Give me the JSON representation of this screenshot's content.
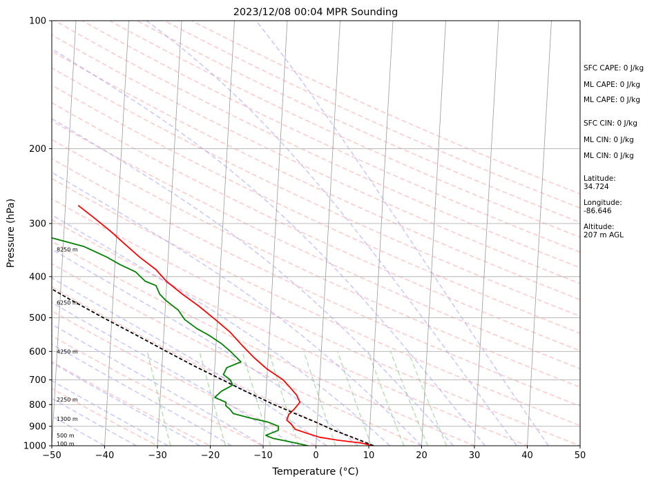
{
  "chart_data": {
    "type": "line",
    "title": "2023/12/08 00:04 MPR Sounding",
    "xlabel": "Temperature (°C)",
    "ylabel": "Pressure (hPa)",
    "xlim": [
      -50,
      50
    ],
    "ylim": [
      1000,
      100
    ],
    "y_scale": "log",
    "skew": "skew-T",
    "x_ticks": [
      "−50",
      "−40",
      "−30",
      "−20",
      "−10",
      "0",
      "10",
      "20",
      "30",
      "40",
      "50"
    ],
    "y_ticks": [
      "100",
      "200",
      "300",
      "400",
      "500",
      "600",
      "700",
      "800",
      "900",
      "1000"
    ],
    "grid": true,
    "colors": {
      "temperature": "#ff0000",
      "dewpoint": "#008000",
      "parcel": "#000000",
      "dry_adiabats": "#ff9999",
      "moist_adiabats": "#9999ff",
      "mixing_ratio": "#88cc88",
      "isotherms": "#999999"
    },
    "height_labels": [
      {
        "label": "100 m",
        "p": 988
      },
      {
        "label": "500 m",
        "p": 945
      },
      {
        "label": "1300 m",
        "p": 865
      },
      {
        "label": "2250 m",
        "p": 778
      },
      {
        "label": "4250 m",
        "p": 600
      },
      {
        "label": "6250 m",
        "p": 460
      },
      {
        "label": "8250 m",
        "p": 345
      }
    ],
    "series": [
      {
        "name": "temperature",
        "points": [
          {
            "p": 1000,
            "t": 10.9
          },
          {
            "p": 985,
            "t": 8.5
          },
          {
            "p": 970,
            "t": 4.0
          },
          {
            "p": 955,
            "t": 0.6
          },
          {
            "p": 935,
            "t": -1.8
          },
          {
            "p": 915,
            "t": -4.1
          },
          {
            "p": 890,
            "t": -4.9
          },
          {
            "p": 870,
            "t": -5.8
          },
          {
            "p": 845,
            "t": -5.5
          },
          {
            "p": 820,
            "t": -4.5
          },
          {
            "p": 790,
            "t": -3.5
          },
          {
            "p": 760,
            "t": -4.2
          },
          {
            "p": 730,
            "t": -5.5
          },
          {
            "p": 700,
            "t": -6.9
          },
          {
            "p": 660,
            "t": -10.1
          },
          {
            "p": 620,
            "t": -12.7
          },
          {
            "p": 580,
            "t": -15.1
          },
          {
            "p": 540,
            "t": -17.5
          },
          {
            "p": 505,
            "t": -20.4
          },
          {
            "p": 470,
            "t": -23.6
          },
          {
            "p": 440,
            "t": -26.9
          },
          {
            "p": 410,
            "t": -30.1
          },
          {
            "p": 385,
            "t": -32.2
          },
          {
            "p": 360,
            "t": -35.4
          },
          {
            "p": 335,
            "t": -38.4
          },
          {
            "p": 312,
            "t": -41.3
          },
          {
            "p": 290,
            "t": -44.6
          },
          {
            "p": 272,
            "t": -47.6
          }
        ]
      },
      {
        "name": "dewpoint",
        "points": [
          {
            "p": 1000,
            "t": -1.5
          },
          {
            "p": 985,
            "t": -3.9
          },
          {
            "p": 960,
            "t": -8.3
          },
          {
            "p": 945,
            "t": -9.6
          },
          {
            "p": 920,
            "t": -7.3
          },
          {
            "p": 900,
            "t": -7.3
          },
          {
            "p": 880,
            "t": -9.3
          },
          {
            "p": 860,
            "t": -12.8
          },
          {
            "p": 840,
            "t": -16.0
          },
          {
            "p": 820,
            "t": -16.7
          },
          {
            "p": 805,
            "t": -17.5
          },
          {
            "p": 790,
            "t": -17.5
          },
          {
            "p": 770,
            "t": -19.7
          },
          {
            "p": 745,
            "t": -18.5
          },
          {
            "p": 720,
            "t": -16.4
          },
          {
            "p": 700,
            "t": -16.9
          },
          {
            "p": 680,
            "t": -18.3
          },
          {
            "p": 655,
            "t": -17.7
          },
          {
            "p": 635,
            "t": -15.1
          },
          {
            "p": 600,
            "t": -17.2
          },
          {
            "p": 575,
            "t": -19.0
          },
          {
            "p": 550,
            "t": -21.4
          },
          {
            "p": 530,
            "t": -23.8
          },
          {
            "p": 505,
            "t": -26.2
          },
          {
            "p": 480,
            "t": -27.5
          },
          {
            "p": 455,
            "t": -30.0
          },
          {
            "p": 440,
            "t": -31.2
          },
          {
            "p": 420,
            "t": -32.0
          },
          {
            "p": 410,
            "t": -34.1
          },
          {
            "p": 390,
            "t": -36.0
          },
          {
            "p": 375,
            "t": -39.0
          },
          {
            "p": 360,
            "t": -41.6
          },
          {
            "p": 340,
            "t": -46.0
          },
          {
            "p": 325,
            "t": -52.0
          },
          {
            "p": 310,
            "t": -57.2
          },
          {
            "p": 300,
            "t": -65.5
          },
          {
            "p": 293,
            "t": -75.4
          }
        ]
      },
      {
        "name": "parcel",
        "points": [
          {
            "p": 1000,
            "t": 10.9
          },
          {
            "p": 960,
            "t": 7.3
          },
          {
            "p": 920,
            "t": 3.3
          },
          {
            "p": 880,
            "t": -0.3
          },
          {
            "p": 840,
            "t": -4.3
          },
          {
            "p": 815,
            "t": -6.8
          },
          {
            "p": 800,
            "t": -8.4
          },
          {
            "p": 770,
            "t": -11.3
          },
          {
            "p": 740,
            "t": -14.4
          },
          {
            "p": 700,
            "t": -18.4
          },
          {
            "p": 650,
            "t": -23.8
          },
          {
            "p": 600,
            "t": -29.3
          },
          {
            "p": 550,
            "t": -35.1
          },
          {
            "p": 500,
            "t": -41.6
          },
          {
            "p": 450,
            "t": -48.5
          },
          {
            "p": 400,
            "t": -55.9
          },
          {
            "p": 350,
            "t": -64.1
          },
          {
            "p": 300,
            "t": -73.8
          },
          {
            "p": 268,
            "t": -80.7
          }
        ]
      }
    ]
  },
  "side_panel": {
    "sfc_cape": "SFC CAPE: 0 J/kg",
    "ml_cape_1": "ML CAPE: 0 J/kg",
    "ml_cape_2": "ML CAPE: 0 J/kg",
    "sfc_cin": "SFC CIN: 0 J/kg",
    "ml_cin_1": "ML CIN: 0 J/kg",
    "ml_cin_2": "ML CIN: 0 J/kg",
    "latitude_label": "Latitude:",
    "latitude_value": "34.724",
    "longitude_label": "Longitude:",
    "longitude_value": "-86.646",
    "altitude_label": "Altitude:",
    "altitude_value": "207 m AGL"
  }
}
